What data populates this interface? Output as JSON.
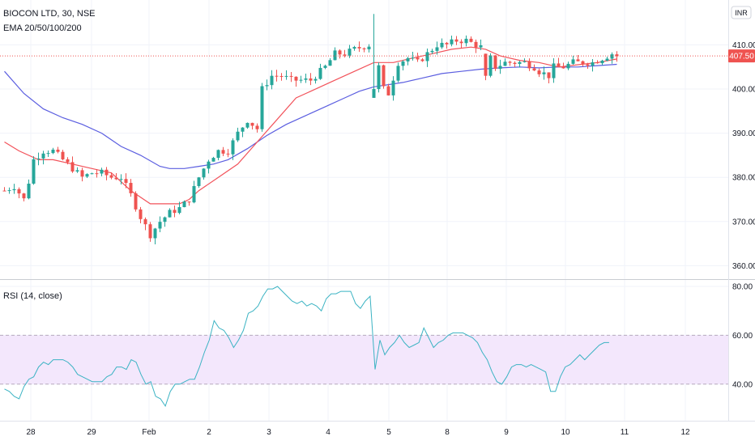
{
  "chart_data": [
    {
      "type": "candlestick",
      "title": "BIOCON LTD, 30, NSE",
      "indicator_label": "EMA 20/50/100/200",
      "currency": "INR",
      "last_price": "407.50",
      "last_price_value": 407.5,
      "colors": {
        "up": "#26a69a",
        "down": "#ef5350",
        "ema_fast": "#f2525a",
        "ema_slow": "#5b5ee0",
        "last_price": "#ef5350"
      },
      "ylim": [
        357.5,
        416.5
      ],
      "y_ticks": [
        "360.00",
        "370.00",
        "380.00",
        "390.00",
        "400.00",
        "410.00"
      ],
      "x_ticks": [
        "28",
        "29",
        "Feb",
        "2",
        "3",
        "4",
        "5",
        "8",
        "9",
        "10",
        "11",
        "12"
      ],
      "candle_count": 127,
      "close_path": [
        [
          0,
          377
        ],
        [
          2,
          378
        ],
        [
          4,
          375
        ],
        [
          5,
          379
        ],
        [
          6,
          384
        ],
        [
          8,
          386
        ],
        [
          10,
          386
        ],
        [
          12,
          384
        ],
        [
          14,
          382
        ],
        [
          16,
          380
        ],
        [
          18,
          381
        ],
        [
          20,
          381
        ],
        [
          22,
          380
        ],
        [
          24,
          380
        ],
        [
          26,
          376
        ],
        [
          28,
          371
        ],
        [
          30,
          367
        ],
        [
          32,
          370
        ],
        [
          34,
          372
        ],
        [
          36,
          373
        ],
        [
          38,
          375
        ],
        [
          40,
          380
        ],
        [
          42,
          384
        ],
        [
          44,
          386
        ],
        [
          46,
          386
        ],
        [
          48,
          390
        ],
        [
          50,
          393
        ],
        [
          52,
          391
        ],
        [
          53,
          400
        ],
        [
          55,
          403
        ],
        [
          57,
          403
        ],
        [
          59,
          402
        ],
        [
          61,
          402
        ],
        [
          63,
          402
        ],
        [
          66,
          405
        ],
        [
          68,
          408
        ],
        [
          70,
          408
        ],
        [
          72,
          409
        ],
        [
          75,
          410
        ],
        [
          77,
          405
        ],
        [
          78,
          400
        ],
        [
          79,
          399
        ],
        [
          81,
          406
        ],
        [
          83,
          407
        ],
        [
          85,
          406
        ],
        [
          87,
          408
        ],
        [
          89,
          410
        ],
        [
          91,
          410
        ],
        [
          93,
          411
        ],
        [
          95,
          411
        ],
        [
          97,
          410
        ],
        [
          99,
          409
        ],
        [
          100,
          407
        ],
        [
          101,
          405
        ],
        [
          103,
          406
        ],
        [
          105,
          406
        ],
        [
          107,
          406
        ],
        [
          109,
          405
        ],
        [
          110,
          404
        ],
        [
          112,
          403
        ],
        [
          113,
          405
        ],
        [
          115,
          405
        ],
        [
          117,
          406
        ],
        [
          119,
          406
        ],
        [
          121,
          406
        ],
        [
          123,
          407
        ],
        [
          125,
          408
        ],
        [
          126,
          407.5
        ]
      ],
      "ema20_path": [
        [
          0,
          388
        ],
        [
          3,
          386
        ],
        [
          7,
          384
        ],
        [
          10,
          384
        ],
        [
          14,
          383
        ],
        [
          18,
          382
        ],
        [
          22,
          381
        ],
        [
          26,
          377
        ],
        [
          30,
          374
        ],
        [
          33,
          374
        ],
        [
          36,
          374
        ],
        [
          38,
          375
        ],
        [
          40,
          377
        ],
        [
          44,
          380
        ],
        [
          48,
          383
        ],
        [
          52,
          388
        ],
        [
          56,
          393
        ],
        [
          60,
          398
        ],
        [
          64,
          400
        ],
        [
          68,
          402
        ],
        [
          72,
          404
        ],
        [
          76,
          406
        ],
        [
          80,
          406
        ],
        [
          84,
          407
        ],
        [
          88,
          408
        ],
        [
          92,
          409
        ],
        [
          96,
          409.5
        ],
        [
          99,
          409
        ],
        [
          102,
          407.5
        ],
        [
          106,
          406.5
        ],
        [
          110,
          406
        ],
        [
          114,
          405
        ],
        [
          118,
          405.5
        ],
        [
          122,
          406
        ],
        [
          126,
          406.8
        ]
      ],
      "ema50_path": [
        [
          0,
          404
        ],
        [
          4,
          399
        ],
        [
          8,
          395.5
        ],
        [
          12,
          393.5
        ],
        [
          16,
          392
        ],
        [
          20,
          390
        ],
        [
          24,
          387
        ],
        [
          28,
          385
        ],
        [
          32,
          382.5
        ],
        [
          34,
          382
        ],
        [
          37,
          382
        ],
        [
          40,
          382.5
        ],
        [
          43,
          383
        ],
        [
          46,
          384
        ],
        [
          50,
          386.5
        ],
        [
          54,
          389.5
        ],
        [
          58,
          392
        ],
        [
          62,
          394
        ],
        [
          66,
          396
        ],
        [
          70,
          398
        ],
        [
          73,
          399.5
        ],
        [
          76,
          400.5
        ],
        [
          79,
          401
        ],
        [
          82,
          401.5
        ],
        [
          86,
          402.5
        ],
        [
          90,
          403.5
        ],
        [
          94,
          404
        ],
        [
          98,
          404.5
        ],
        [
          102,
          404.8
        ],
        [
          106,
          405
        ],
        [
          110,
          404.8
        ],
        [
          114,
          405
        ],
        [
          118,
          405
        ],
        [
          122,
          405.3
        ],
        [
          126,
          405.6
        ]
      ],
      "spikes": [
        [
          76,
          398,
          417,
          400
        ],
        [
          99,
          408,
          408,
          403
        ]
      ],
      "rsi": {
        "label": "RSI (14, close)",
        "ylim": [
          26,
          82
        ],
        "y_ticks": [
          "40.00",
          "60.00",
          "80.00"
        ],
        "band": [
          40,
          60
        ],
        "colors": {
          "line": "#3bb3c3",
          "band": "#f3e7fc",
          "band_border": "#b7aabd"
        },
        "values": [
          38,
          37,
          35,
          34,
          39,
          42,
          43,
          47,
          49,
          48,
          50,
          50,
          50,
          49,
          47,
          44,
          43,
          42,
          41,
          41,
          41,
          43,
          44,
          47,
          47,
          46,
          50,
          49,
          44,
          40,
          41,
          35,
          34,
          31,
          37,
          40,
          40,
          41,
          42,
          42,
          47,
          53,
          58,
          66,
          63,
          62,
          59,
          55,
          58,
          62,
          69,
          70,
          72,
          76,
          79,
          79,
          80,
          78,
          76,
          74,
          73,
          74,
          72,
          73,
          72,
          70,
          75,
          77,
          77,
          78,
          78,
          78,
          73,
          71,
          74,
          76,
          46,
          58,
          52,
          55,
          57,
          60,
          57,
          55,
          56,
          57,
          63,
          59,
          55,
          57,
          58,
          60,
          61,
          61,
          61,
          60,
          59,
          57,
          53,
          50,
          45,
          41,
          40,
          43,
          47,
          48,
          48,
          47,
          48,
          47,
          46,
          45,
          37,
          37,
          43,
          47,
          48,
          50,
          52,
          50,
          52,
          54,
          56,
          57,
          57
        ]
      }
    }
  ]
}
